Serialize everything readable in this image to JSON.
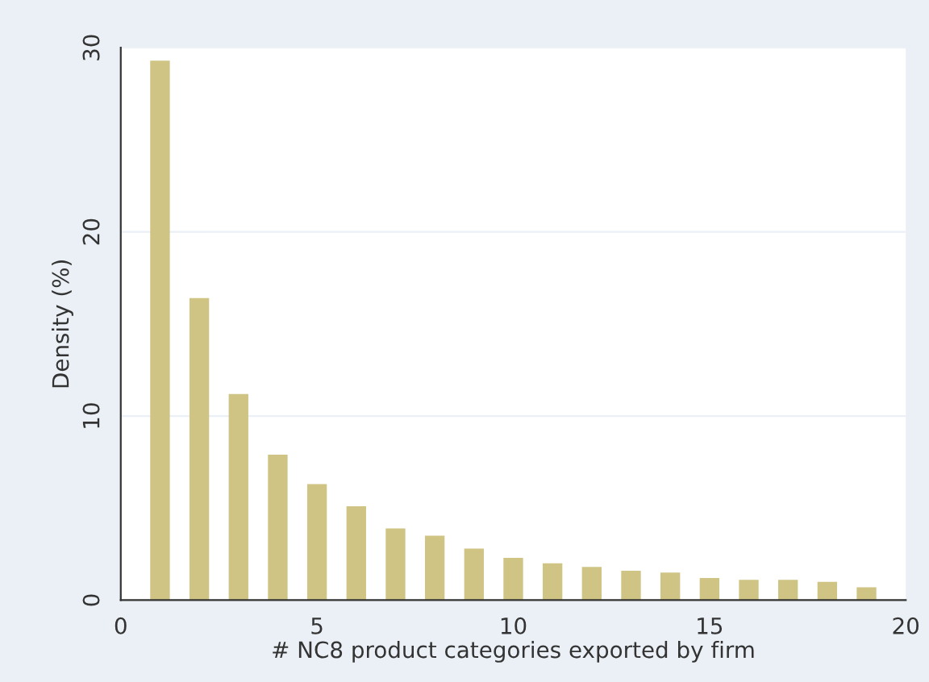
{
  "chart_data": {
    "type": "bar",
    "xlabel": "# NC8 product categories exported by firm",
    "ylabel": "Density (%)",
    "x": [
      1,
      2,
      3,
      4,
      5,
      6,
      7,
      8,
      9,
      10,
      11,
      12,
      13,
      14,
      15,
      16,
      17,
      18,
      19
    ],
    "values": [
      29.3,
      16.4,
      11.2,
      7.9,
      6.3,
      5.1,
      3.9,
      3.5,
      2.8,
      2.3,
      2.0,
      1.8,
      1.6,
      1.5,
      1.2,
      1.1,
      1.1,
      1.0,
      0.7
    ],
    "color": "#cfc483",
    "xlim": [
      0,
      20
    ],
    "xticks": [
      0,
      5,
      10,
      15,
      20
    ],
    "ylim": [
      0,
      30
    ],
    "yticks": [
      0,
      10,
      20,
      30
    ],
    "grid": "y",
    "legend": false
  }
}
